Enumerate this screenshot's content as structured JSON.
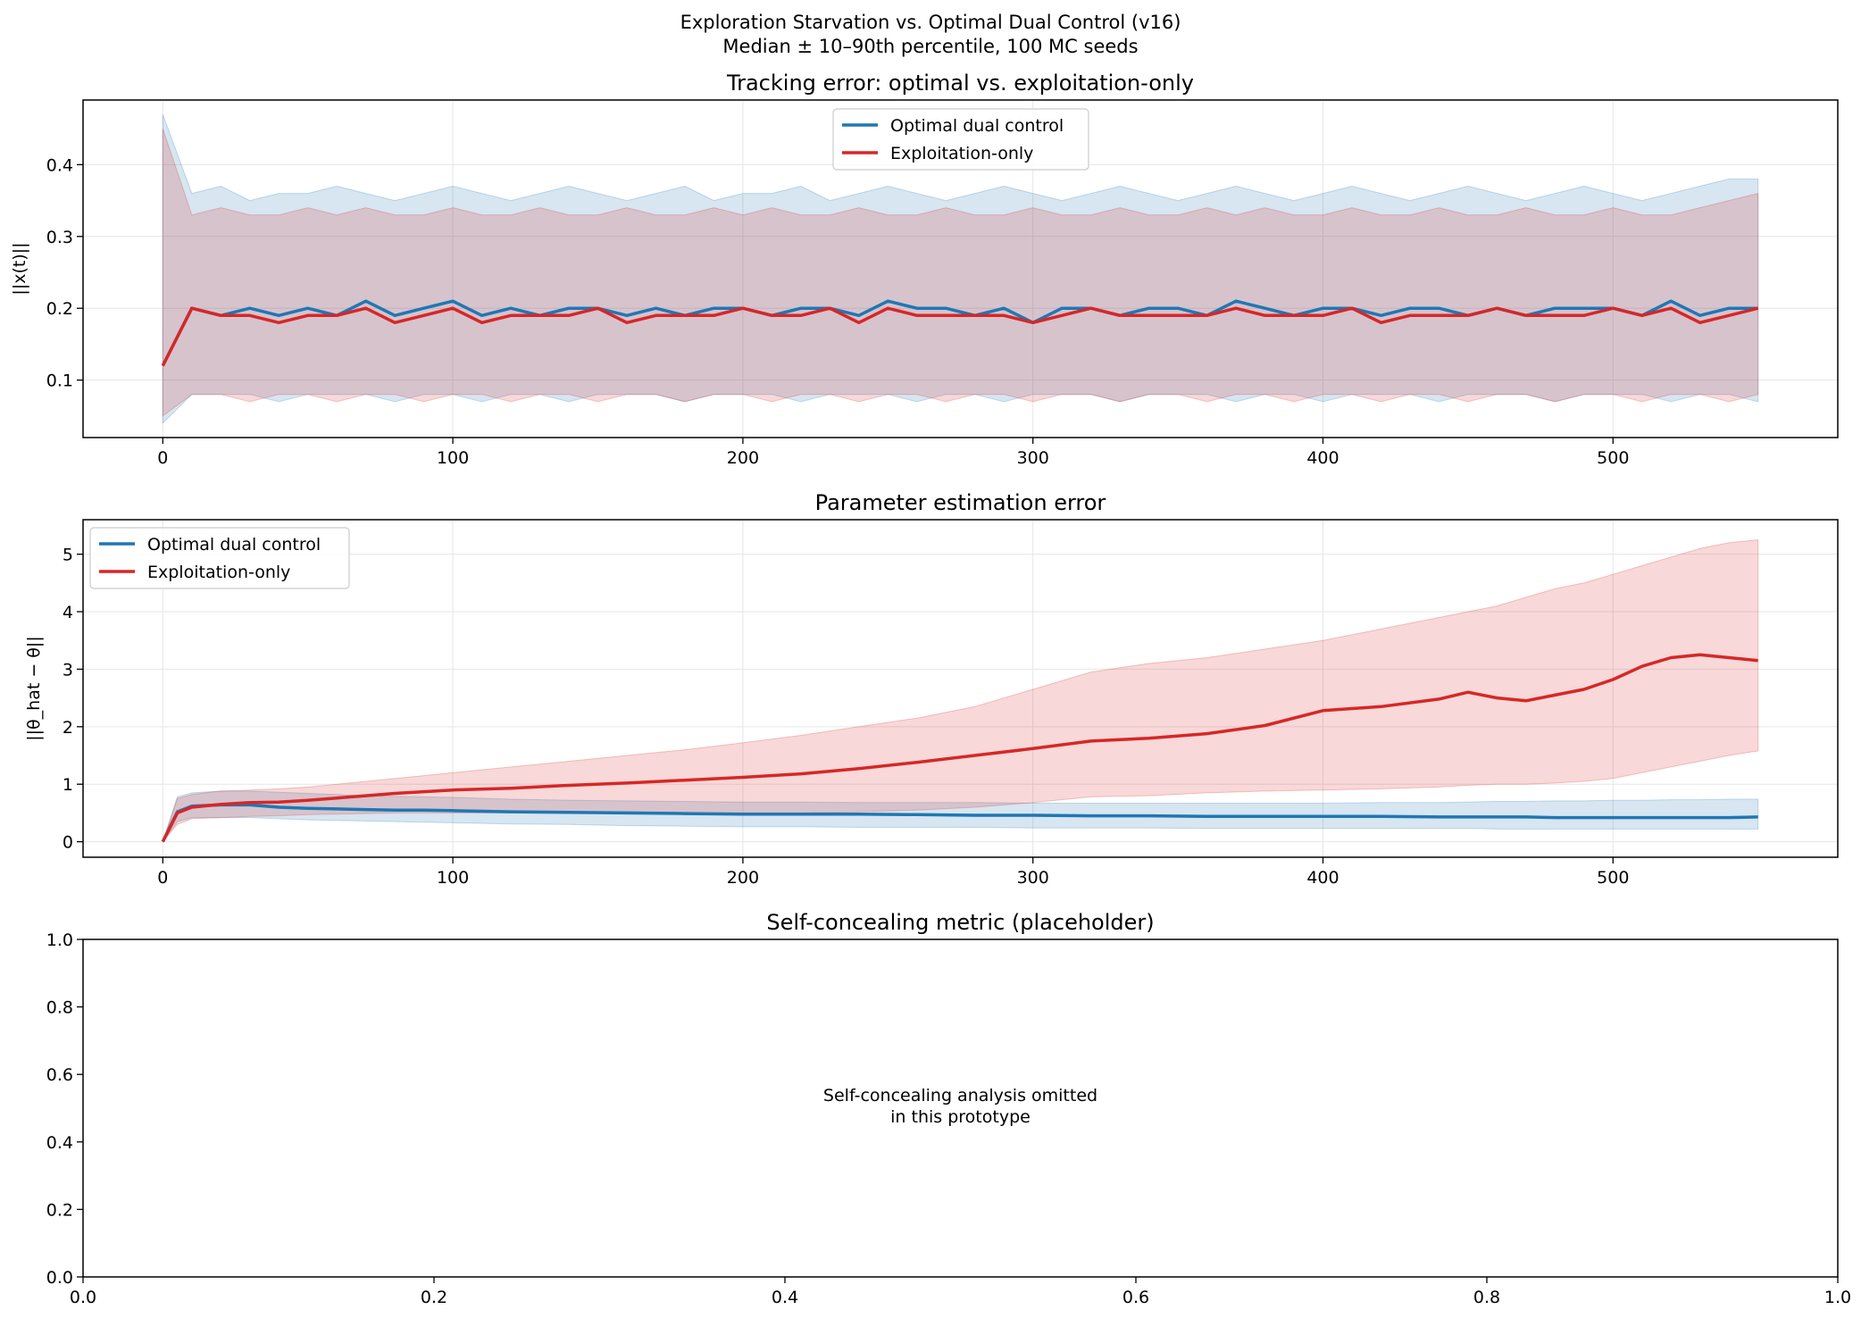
{
  "figure": {
    "suptitle": [
      "Exploration Starvation vs. Optimal Dual Control (v16)",
      "Median ± 10–90th percentile, 100 MC seeds"
    ]
  },
  "colors": {
    "optimal": "#1f77b4",
    "exploitation": "#d62728",
    "grid": "#e6e6e6"
  },
  "chart_data": [
    {
      "type": "line",
      "title": "Tracking error: optimal vs. exploitation-only",
      "xlabel": "",
      "ylabel": "||x(t)||",
      "xlim": [
        -27.5,
        577.5
      ],
      "ylim": [
        0.02,
        0.49
      ],
      "xticks": [
        0,
        100,
        200,
        300,
        400,
        500
      ],
      "yticks": [
        0.1,
        0.2,
        0.3,
        0.4
      ],
      "grid": true,
      "legend": "upper center",
      "x": [
        0,
        10,
        20,
        30,
        40,
        50,
        60,
        70,
        80,
        90,
        100,
        110,
        120,
        130,
        140,
        150,
        160,
        170,
        180,
        190,
        200,
        210,
        220,
        230,
        240,
        250,
        260,
        270,
        280,
        290,
        300,
        310,
        320,
        330,
        340,
        350,
        360,
        370,
        380,
        390,
        400,
        410,
        420,
        430,
        440,
        450,
        460,
        470,
        480,
        490,
        500,
        510,
        520,
        530,
        540,
        550
      ],
      "series": [
        {
          "name": "Optimal dual control",
          "median": [
            0.12,
            0.2,
            0.19,
            0.2,
            0.19,
            0.2,
            0.19,
            0.21,
            0.19,
            0.2,
            0.21,
            0.19,
            0.2,
            0.19,
            0.2,
            0.2,
            0.19,
            0.2,
            0.19,
            0.2,
            0.2,
            0.19,
            0.2,
            0.2,
            0.19,
            0.21,
            0.2,
            0.2,
            0.19,
            0.2,
            0.18,
            0.2,
            0.2,
            0.19,
            0.2,
            0.2,
            0.19,
            0.21,
            0.2,
            0.19,
            0.2,
            0.2,
            0.19,
            0.2,
            0.2,
            0.19,
            0.2,
            0.19,
            0.2,
            0.2,
            0.2,
            0.19,
            0.21,
            0.19,
            0.2,
            0.2
          ],
          "p10": [
            0.04,
            0.08,
            0.08,
            0.08,
            0.07,
            0.08,
            0.08,
            0.08,
            0.07,
            0.08,
            0.08,
            0.07,
            0.08,
            0.08,
            0.07,
            0.08,
            0.08,
            0.08,
            0.07,
            0.08,
            0.08,
            0.08,
            0.07,
            0.08,
            0.08,
            0.08,
            0.07,
            0.08,
            0.08,
            0.07,
            0.08,
            0.08,
            0.08,
            0.07,
            0.08,
            0.08,
            0.08,
            0.07,
            0.08,
            0.08,
            0.07,
            0.08,
            0.08,
            0.08,
            0.07,
            0.08,
            0.08,
            0.08,
            0.07,
            0.08,
            0.08,
            0.08,
            0.07,
            0.08,
            0.08,
            0.07
          ],
          "p90": [
            0.47,
            0.36,
            0.37,
            0.35,
            0.36,
            0.36,
            0.37,
            0.36,
            0.35,
            0.36,
            0.37,
            0.36,
            0.35,
            0.36,
            0.37,
            0.36,
            0.35,
            0.36,
            0.37,
            0.35,
            0.36,
            0.36,
            0.37,
            0.35,
            0.36,
            0.37,
            0.36,
            0.35,
            0.36,
            0.37,
            0.36,
            0.35,
            0.36,
            0.37,
            0.36,
            0.35,
            0.36,
            0.37,
            0.36,
            0.35,
            0.36,
            0.37,
            0.36,
            0.35,
            0.36,
            0.37,
            0.36,
            0.35,
            0.36,
            0.37,
            0.36,
            0.35,
            0.36,
            0.37,
            0.38,
            0.38
          ]
        },
        {
          "name": "Exploitation-only",
          "median": [
            0.12,
            0.2,
            0.19,
            0.19,
            0.18,
            0.19,
            0.19,
            0.2,
            0.18,
            0.19,
            0.2,
            0.18,
            0.19,
            0.19,
            0.19,
            0.2,
            0.18,
            0.19,
            0.19,
            0.19,
            0.2,
            0.19,
            0.19,
            0.2,
            0.18,
            0.2,
            0.19,
            0.19,
            0.19,
            0.19,
            0.18,
            0.19,
            0.2,
            0.19,
            0.19,
            0.19,
            0.19,
            0.2,
            0.19,
            0.19,
            0.19,
            0.2,
            0.18,
            0.19,
            0.19,
            0.19,
            0.2,
            0.19,
            0.19,
            0.19,
            0.2,
            0.19,
            0.2,
            0.18,
            0.19,
            0.2
          ],
          "p10": [
            0.05,
            0.08,
            0.08,
            0.07,
            0.08,
            0.08,
            0.07,
            0.08,
            0.08,
            0.07,
            0.08,
            0.08,
            0.07,
            0.08,
            0.08,
            0.07,
            0.08,
            0.08,
            0.07,
            0.08,
            0.08,
            0.07,
            0.08,
            0.08,
            0.07,
            0.08,
            0.08,
            0.07,
            0.08,
            0.08,
            0.07,
            0.08,
            0.08,
            0.07,
            0.08,
            0.08,
            0.07,
            0.08,
            0.08,
            0.07,
            0.08,
            0.08,
            0.07,
            0.08,
            0.08,
            0.07,
            0.08,
            0.08,
            0.07,
            0.08,
            0.08,
            0.07,
            0.08,
            0.08,
            0.07,
            0.08
          ],
          "p90": [
            0.45,
            0.33,
            0.34,
            0.33,
            0.33,
            0.34,
            0.33,
            0.34,
            0.33,
            0.33,
            0.34,
            0.33,
            0.33,
            0.34,
            0.33,
            0.33,
            0.34,
            0.33,
            0.33,
            0.34,
            0.33,
            0.34,
            0.33,
            0.33,
            0.34,
            0.33,
            0.33,
            0.34,
            0.33,
            0.33,
            0.34,
            0.33,
            0.33,
            0.34,
            0.33,
            0.33,
            0.34,
            0.33,
            0.34,
            0.33,
            0.33,
            0.34,
            0.33,
            0.33,
            0.34,
            0.33,
            0.33,
            0.34,
            0.33,
            0.33,
            0.34,
            0.33,
            0.33,
            0.34,
            0.35,
            0.36
          ]
        }
      ]
    },
    {
      "type": "line",
      "title": "Parameter estimation error",
      "xlabel": "",
      "ylabel": "||θ_hat − θ||",
      "xlim": [
        -27.5,
        577.5
      ],
      "ylim": [
        -0.27,
        5.6
      ],
      "xticks": [
        0,
        100,
        200,
        300,
        400,
        500
      ],
      "yticks": [
        0,
        1,
        2,
        3,
        4,
        5
      ],
      "grid": true,
      "legend": "upper left",
      "x": [
        0,
        5,
        10,
        20,
        30,
        40,
        50,
        60,
        70,
        80,
        90,
        100,
        120,
        140,
        160,
        180,
        200,
        220,
        240,
        260,
        280,
        300,
        320,
        340,
        360,
        380,
        400,
        420,
        440,
        450,
        460,
        470,
        480,
        490,
        500,
        510,
        520,
        530,
        540,
        550
      ],
      "series": [
        {
          "name": "Optimal dual control",
          "median": [
            0.0,
            0.52,
            0.62,
            0.64,
            0.64,
            0.6,
            0.58,
            0.57,
            0.56,
            0.55,
            0.55,
            0.54,
            0.52,
            0.51,
            0.5,
            0.49,
            0.48,
            0.48,
            0.48,
            0.47,
            0.46,
            0.46,
            0.45,
            0.45,
            0.44,
            0.44,
            0.44,
            0.44,
            0.43,
            0.43,
            0.43,
            0.43,
            0.42,
            0.42,
            0.42,
            0.42,
            0.42,
            0.42,
            0.42,
            0.43
          ],
          "p10": [
            0.0,
            0.35,
            0.42,
            0.42,
            0.42,
            0.4,
            0.38,
            0.37,
            0.36,
            0.35,
            0.34,
            0.33,
            0.31,
            0.3,
            0.28,
            0.27,
            0.26,
            0.26,
            0.25,
            0.25,
            0.25,
            0.24,
            0.24,
            0.24,
            0.23,
            0.23,
            0.23,
            0.23,
            0.23,
            0.23,
            0.22,
            0.22,
            0.22,
            0.22,
            0.22,
            0.22,
            0.22,
            0.22,
            0.22,
            0.22
          ],
          "p90": [
            0.0,
            0.78,
            0.85,
            0.88,
            0.88,
            0.86,
            0.84,
            0.82,
            0.8,
            0.79,
            0.78,
            0.77,
            0.74,
            0.72,
            0.71,
            0.7,
            0.69,
            0.69,
            0.68,
            0.68,
            0.68,
            0.67,
            0.67,
            0.67,
            0.67,
            0.67,
            0.67,
            0.68,
            0.68,
            0.69,
            0.7,
            0.7,
            0.71,
            0.71,
            0.72,
            0.72,
            0.73,
            0.73,
            0.74,
            0.74
          ]
        },
        {
          "name": "Exploitation-only",
          "median": [
            0.0,
            0.5,
            0.6,
            0.65,
            0.68,
            0.69,
            0.72,
            0.76,
            0.8,
            0.84,
            0.87,
            0.9,
            0.93,
            0.98,
            1.02,
            1.07,
            1.12,
            1.18,
            1.27,
            1.38,
            1.5,
            1.62,
            1.75,
            1.8,
            1.88,
            2.02,
            2.28,
            2.35,
            2.48,
            2.6,
            2.5,
            2.45,
            2.55,
            2.65,
            2.82,
            3.05,
            3.2,
            3.25,
            3.2,
            3.15
          ],
          "p10": [
            0.0,
            0.3,
            0.4,
            0.42,
            0.44,
            0.45,
            0.47,
            0.48,
            0.49,
            0.5,
            0.5,
            0.5,
            0.5,
            0.5,
            0.5,
            0.5,
            0.5,
            0.5,
            0.52,
            0.55,
            0.6,
            0.68,
            0.78,
            0.8,
            0.85,
            0.88,
            0.9,
            0.92,
            0.95,
            0.98,
            1.0,
            1.0,
            1.02,
            1.05,
            1.1,
            1.2,
            1.3,
            1.4,
            1.5,
            1.58
          ],
          "p90": [
            0.0,
            0.75,
            0.82,
            0.88,
            0.9,
            0.92,
            0.95,
            1.0,
            1.05,
            1.1,
            1.15,
            1.2,
            1.3,
            1.4,
            1.5,
            1.6,
            1.72,
            1.85,
            2.0,
            2.15,
            2.35,
            2.65,
            2.95,
            3.1,
            3.2,
            3.35,
            3.5,
            3.7,
            3.9,
            4.0,
            4.1,
            4.25,
            4.4,
            4.5,
            4.65,
            4.8,
            4.95,
            5.1,
            5.2,
            5.25
          ]
        }
      ]
    },
    {
      "type": "line",
      "title": "Self-concealing metric (placeholder)",
      "xlabel": "",
      "ylabel": "",
      "xlim": [
        0.0,
        1.0
      ],
      "ylim": [
        0.0,
        1.0
      ],
      "xticks": [
        0.0,
        0.2,
        0.4,
        0.6,
        0.8,
        1.0
      ],
      "yticks": [
        0.0,
        0.2,
        0.4,
        0.6,
        0.8,
        1.0
      ],
      "grid": false,
      "annotation": [
        "Self-concealing analysis omitted",
        "in this prototype"
      ],
      "series": []
    }
  ]
}
